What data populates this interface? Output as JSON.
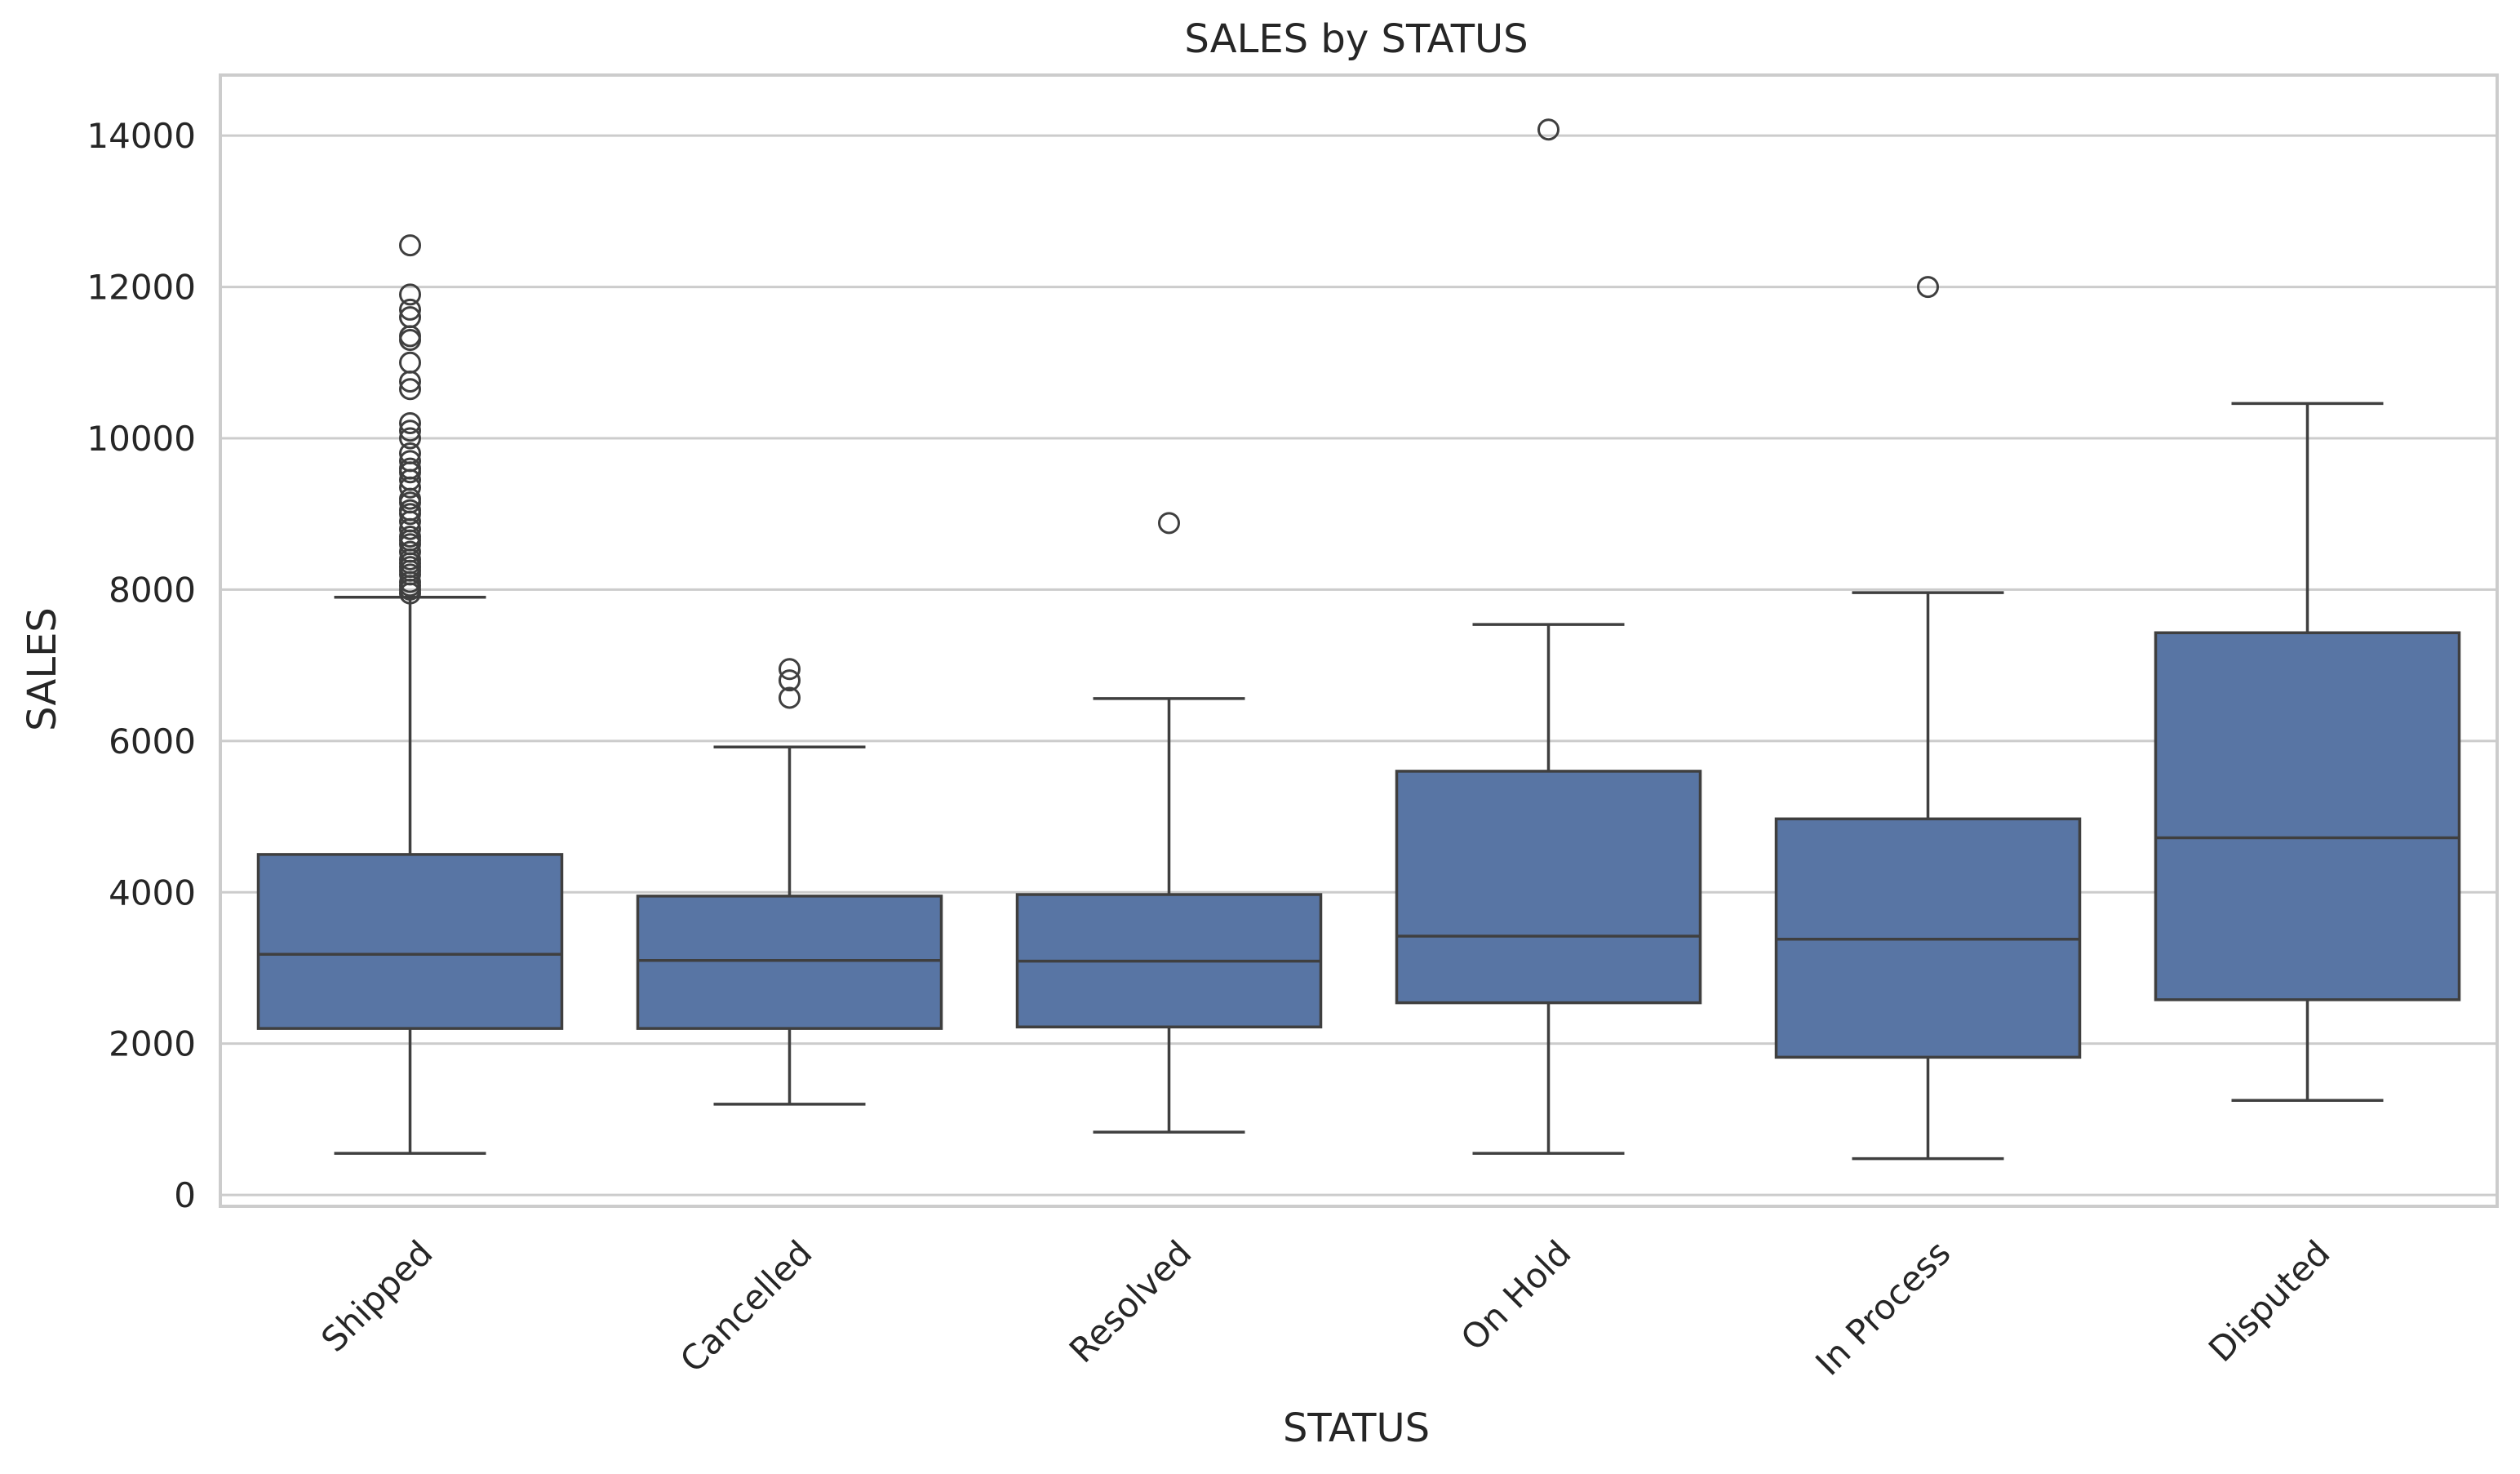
{
  "chart_data": {
    "type": "box",
    "title": "SALES by STATUS",
    "xlabel": "STATUS",
    "ylabel": "SALES",
    "ylim": [
      -150,
      14800
    ],
    "yticks": [
      0,
      2000,
      4000,
      6000,
      8000,
      10000,
      12000,
      14000
    ],
    "grid": true,
    "colors": {
      "box_fill": "#5875a4",
      "box_line": "#3f3f3f",
      "grid": "#cccccc",
      "frame": "#cccccc"
    },
    "categories": [
      "Shipped",
      "Cancelled",
      "Resolved",
      "On Hold",
      "In Process",
      "Disputed"
    ],
    "series": [
      {
        "category": "Shipped",
        "whisker_low": 550,
        "q1": 2200,
        "median": 3180,
        "q3": 4500,
        "whisker_high": 7900,
        "outliers": [
          7950,
          8000,
          8050,
          8100,
          8200,
          8250,
          8300,
          8350,
          8400,
          8500,
          8600,
          8650,
          8700,
          8800,
          8900,
          9000,
          9050,
          9150,
          9200,
          9350,
          9450,
          9550,
          9600,
          9700,
          9800,
          10000,
          10100,
          10200,
          10650,
          10750,
          11000,
          11300,
          11350,
          11600,
          11700,
          11900,
          12550
        ]
      },
      {
        "category": "Cancelled",
        "whisker_low": 1200,
        "q1": 2200,
        "median": 3100,
        "q3": 3950,
        "whisker_high": 5920,
        "outliers": [
          6570,
          6800,
          6950
        ]
      },
      {
        "category": "Resolved",
        "whisker_low": 830,
        "q1": 2220,
        "median": 3090,
        "q3": 3970,
        "whisker_high": 6560,
        "outliers": [
          8880
        ]
      },
      {
        "category": "On Hold",
        "whisker_low": 550,
        "q1": 2540,
        "median": 3420,
        "q3": 5600,
        "whisker_high": 7540,
        "outliers": [
          14080
        ]
      },
      {
        "category": "In Process",
        "whisker_low": 480,
        "q1": 1820,
        "median": 3380,
        "q3": 4970,
        "whisker_high": 7960,
        "outliers": [
          12000
        ]
      },
      {
        "category": "Disputed",
        "whisker_low": 1250,
        "q1": 2580,
        "median": 4720,
        "q3": 7430,
        "whisker_high": 10460,
        "outliers": []
      }
    ]
  }
}
